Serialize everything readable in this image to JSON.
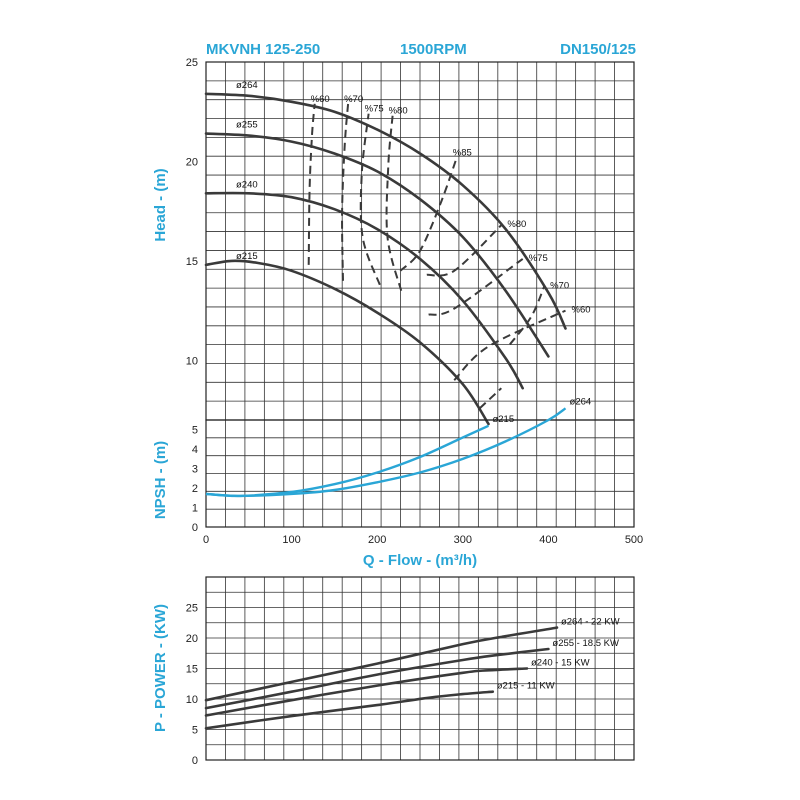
{
  "header": {
    "model": "MKVNH 125-250",
    "speed": "1500RPM",
    "size": "DN150/125"
  },
  "colors": {
    "accent": "#2aa6d6",
    "curve": "#3a3a3a"
  },
  "chart_data": [
    {
      "type": "line",
      "name": "head",
      "ylabel": "Head - (m)",
      "xlim": [
        0,
        500
      ],
      "ylim": [
        7,
        25
      ],
      "yticks": [
        "10",
        "15",
        "20",
        "25"
      ],
      "series": [
        {
          "name": "ø264",
          "x": [
            0,
            50,
            100,
            150,
            200,
            250,
            300,
            350,
            400,
            420
          ],
          "y": [
            23.4,
            23.3,
            23.0,
            22.5,
            21.6,
            20.4,
            18.8,
            16.6,
            13.4,
            11.6
          ]
        },
        {
          "name": "ø255",
          "x": [
            0,
            50,
            100,
            150,
            200,
            250,
            300,
            350,
            400
          ],
          "y": [
            21.4,
            21.3,
            21.0,
            20.4,
            19.5,
            18.1,
            16.2,
            13.5,
            10.2
          ]
        },
        {
          "name": "ø240",
          "x": [
            0,
            50,
            100,
            150,
            200,
            250,
            300,
            350,
            370
          ],
          "y": [
            18.4,
            18.4,
            18.2,
            17.6,
            16.6,
            15.1,
            13.0,
            10.1,
            8.6
          ]
        },
        {
          "name": "ø215",
          "x": [
            0,
            30,
            60,
            100,
            150,
            200,
            250,
            300,
            330
          ],
          "y": [
            14.8,
            15.0,
            14.9,
            14.5,
            13.6,
            12.4,
            10.9,
            8.8,
            6.8
          ]
        }
      ],
      "efficiency": [
        {
          "label": "%60",
          "x": [
            120,
            121,
            124,
            127
          ],
          "y": [
            14.8,
            18.6,
            21.4,
            22.9
          ]
        },
        {
          "label": "%70",
          "x": [
            160,
            159,
            162,
            166
          ],
          "y": [
            14.0,
            17.5,
            20.8,
            22.9
          ]
        },
        {
          "label": "%75",
          "x": [
            203,
            183,
            182,
            190
          ],
          "y": [
            13.8,
            16.2,
            19.4,
            22.4
          ]
        },
        {
          "label": "%80",
          "x": [
            228,
            212,
            213,
            218
          ],
          "y": [
            13.5,
            16.2,
            19.8,
            22.3
          ]
        },
        {
          "label": "%85",
          "x": [
            227,
            250,
            275,
            293
          ],
          "y": [
            14.5,
            15.5,
            18.0,
            20.2
          ]
        }
      ],
      "efficiency_right": [
        {
          "label": "%80",
          "x": [
            258,
            290,
            345
          ],
          "y": [
            14.3,
            14.5,
            16.8
          ]
        },
        {
          "label": "%75",
          "x": [
            260,
            290,
            370
          ],
          "y": [
            12.3,
            12.6,
            15.1
          ]
        },
        {
          "label": "%70",
          "x": [
            355,
            380,
            395
          ],
          "y": [
            10.8,
            12.2,
            13.7
          ]
        },
        {
          "label": "%60",
          "x": [
            290,
            330,
            420
          ],
          "y": [
            9.0,
            10.7,
            12.5
          ]
        },
        {
          "label": "%60-lower",
          "x": [
            320,
            345
          ],
          "y": [
            7.6,
            8.6
          ]
        }
      ],
      "labels_right": [
        "%80",
        "%75",
        "%70",
        "%60"
      ]
    },
    {
      "type": "line",
      "name": "npsh",
      "ylabel": "NPSH - (m)",
      "xlabel": "Q - Flow - (m³/h)",
      "xlim": [
        0,
        500
      ],
      "ylim": [
        0,
        5.5
      ],
      "yticks": [
        "0",
        "1",
        "2",
        "3",
        "4",
        "5"
      ],
      "xticks": [
        "0",
        "100",
        "200",
        "300",
        "400",
        "500"
      ],
      "series": [
        {
          "name": "ø215",
          "x": [
            0,
            40,
            100,
            150,
            200,
            250,
            300,
            330
          ],
          "y": [
            1.7,
            1.6,
            1.8,
            2.2,
            2.8,
            3.6,
            4.6,
            5.2
          ]
        },
        {
          "name": "ø264",
          "x": [
            0,
            40,
            100,
            150,
            200,
            250,
            300,
            350,
            400,
            420
          ],
          "y": [
            1.7,
            1.6,
            1.7,
            1.9,
            2.3,
            2.8,
            3.5,
            4.4,
            5.5,
            6.1
          ]
        }
      ]
    },
    {
      "type": "line",
      "name": "power",
      "ylabel": "P - POWER - (KW)",
      "xlim": [
        0,
        500
      ],
      "ylim": [
        0,
        30
      ],
      "yticks": [
        "0",
        "5",
        "10",
        "15",
        "20",
        "25"
      ],
      "series": [
        {
          "name": "ø264 - 22 KW",
          "x": [
            0,
            100,
            200,
            300,
            350,
            410
          ],
          "y": [
            9.8,
            12.8,
            15.8,
            19.0,
            20.3,
            21.7
          ]
        },
        {
          "name": "ø255 - 18.5 KW",
          "x": [
            0,
            100,
            200,
            300,
            340,
            400
          ],
          "y": [
            8.5,
            11.2,
            14.0,
            16.4,
            17.2,
            18.2
          ]
        },
        {
          "name": "ø240 - 15 KW",
          "x": [
            0,
            100,
            200,
            300,
            330,
            375
          ],
          "y": [
            7.3,
            9.8,
            12.2,
            14.3,
            14.7,
            15.0
          ]
        },
        {
          "name": "ø215 - 11 KW",
          "x": [
            0,
            100,
            200,
            260,
            300,
            335
          ],
          "y": [
            5.2,
            7.2,
            9.0,
            10.2,
            10.8,
            11.2
          ]
        }
      ]
    }
  ]
}
